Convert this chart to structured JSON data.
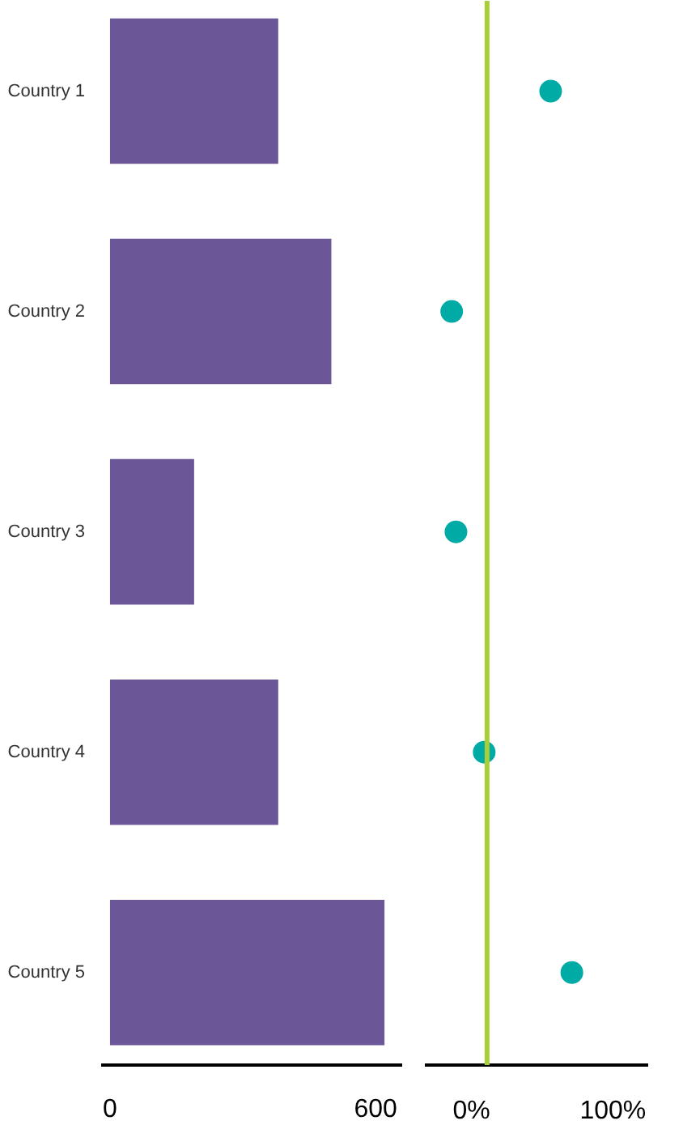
{
  "chart_data": [
    {
      "type": "bar",
      "orientation": "horizontal",
      "categories": [
        "Country 1",
        "Country 2",
        "Country 3",
        "Country 4",
        "Country 5"
      ],
      "values": [
        380,
        500,
        190,
        380,
        620
      ],
      "color": "#6b5797",
      "xlim": [
        -20,
        660
      ],
      "xticks": [
        0,
        600
      ],
      "grid": false
    },
    {
      "type": "scatter",
      "orientation": "horizontal",
      "categories": [
        null,
        null,
        null,
        null,
        null
      ],
      "values": [
        56,
        -14,
        -11,
        9,
        71
      ],
      "color": "#00aaa5",
      "marker": "circle",
      "xlim": [
        -33,
        125
      ],
      "xticks": [
        {
          "value": 0,
          "label": "0%"
        },
        {
          "value": 100,
          "label": "100%"
        }
      ],
      "tick_labels": "x",
      "grid": false,
      "ref_lines": [
        {
          "axis": "x",
          "value": 11,
          "color": "#a8cf3a"
        }
      ]
    }
  ]
}
